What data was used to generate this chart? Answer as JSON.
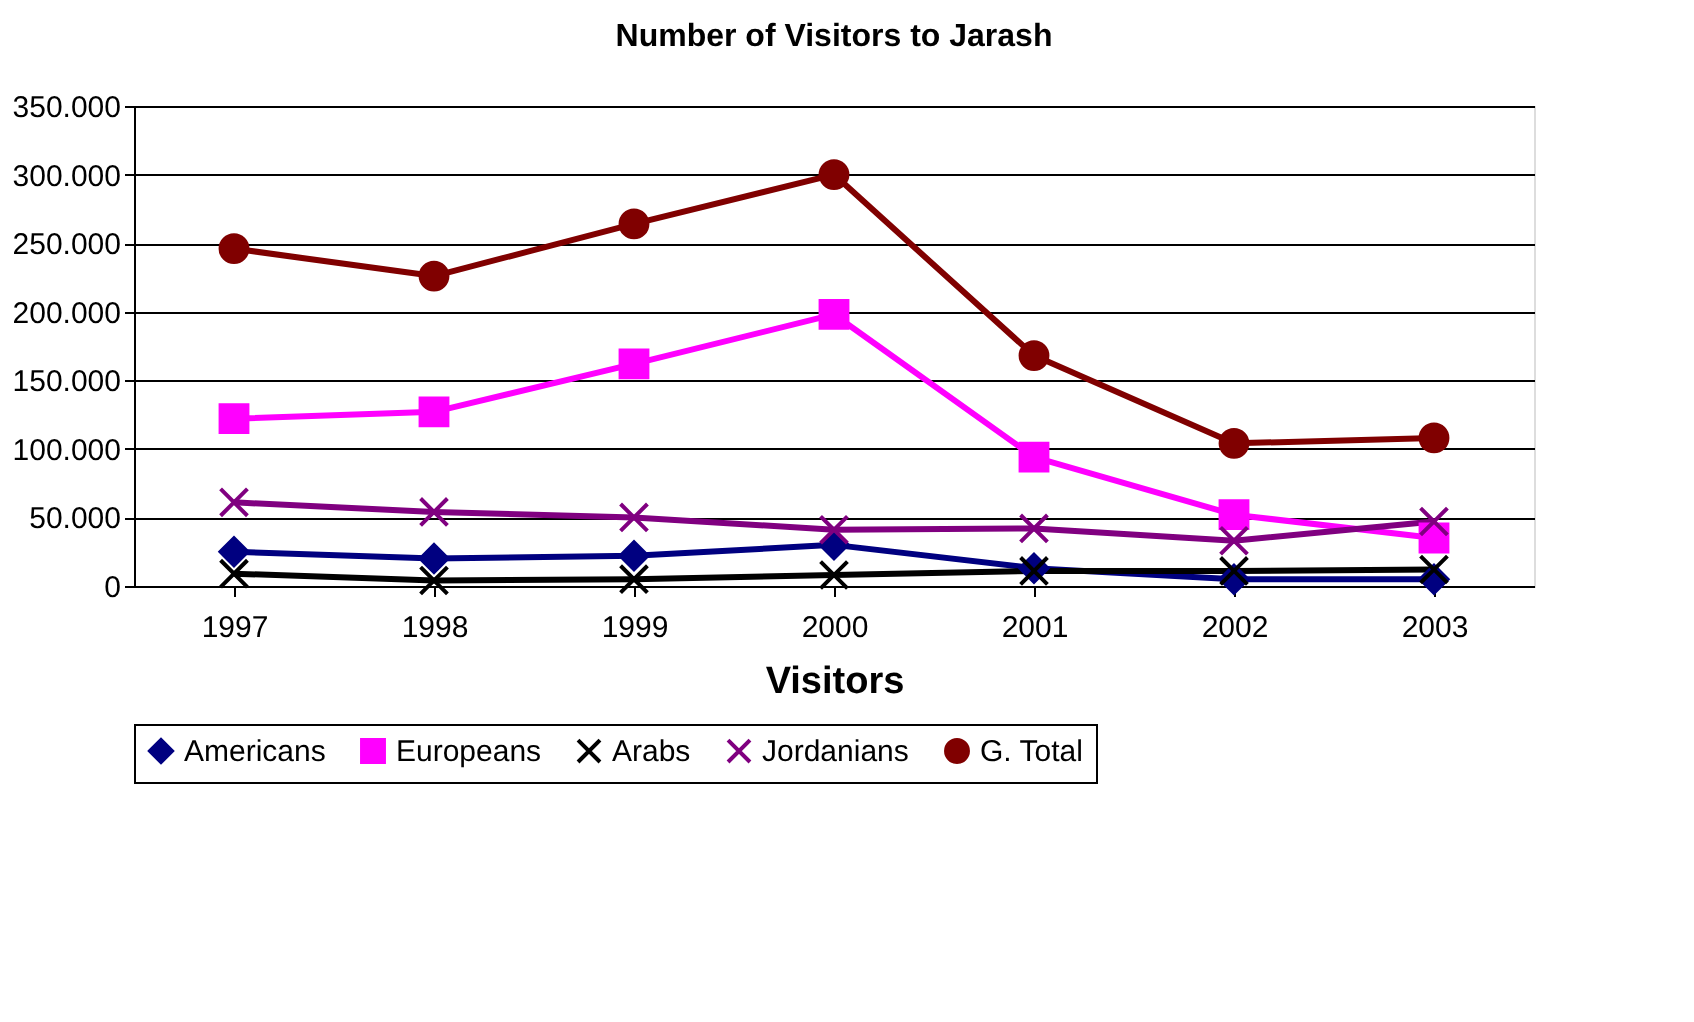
{
  "chart_data": {
    "type": "line",
    "title": "Number of Visitors to Jarash",
    "xlabel": "Visitors",
    "categories": [
      "1997",
      "1998",
      "1999",
      "2000",
      "2001",
      "2002",
      "2003"
    ],
    "series": [
      {
        "name": "Americans",
        "color": "#000080",
        "marker": "diamond",
        "values": [
          25000,
          20000,
          22000,
          30000,
          13000,
          5000,
          5000
        ]
      },
      {
        "name": "Europeans",
        "color": "#ff00ff",
        "marker": "square",
        "values": [
          122000,
          127000,
          162000,
          198000,
          94000,
          52000,
          35000
        ]
      },
      {
        "name": "Arabs",
        "color": "#000000",
        "marker": "cross",
        "values": [
          9000,
          4000,
          5000,
          8000,
          11000,
          11000,
          12000
        ]
      },
      {
        "name": "Jordanians",
        "color": "#800080",
        "marker": "cross",
        "values": [
          61000,
          54000,
          50000,
          41000,
          42000,
          33000,
          47000
        ]
      },
      {
        "name": "G. Total",
        "color": "#800000",
        "marker": "circle",
        "values": [
          246000,
          226000,
          264000,
          300000,
          168000,
          104000,
          108000
        ]
      }
    ],
    "ylim": [
      0,
      350000
    ],
    "yticks": [
      0,
      {
        "value": 50000,
        "label": "50.000"
      },
      {
        "value": 100000,
        "label": "100.000"
      },
      {
        "value": 150000,
        "label": "150.000"
      },
      {
        "value": 200000,
        "label": "200.000"
      },
      {
        "value": 250000,
        "label": "250.000"
      },
      {
        "value": 300000,
        "label": "300.000"
      },
      {
        "value": 350000,
        "label": "350.000"
      }
    ],
    "grid": "y",
    "legend": "bottom",
    "line_style": "solid"
  }
}
